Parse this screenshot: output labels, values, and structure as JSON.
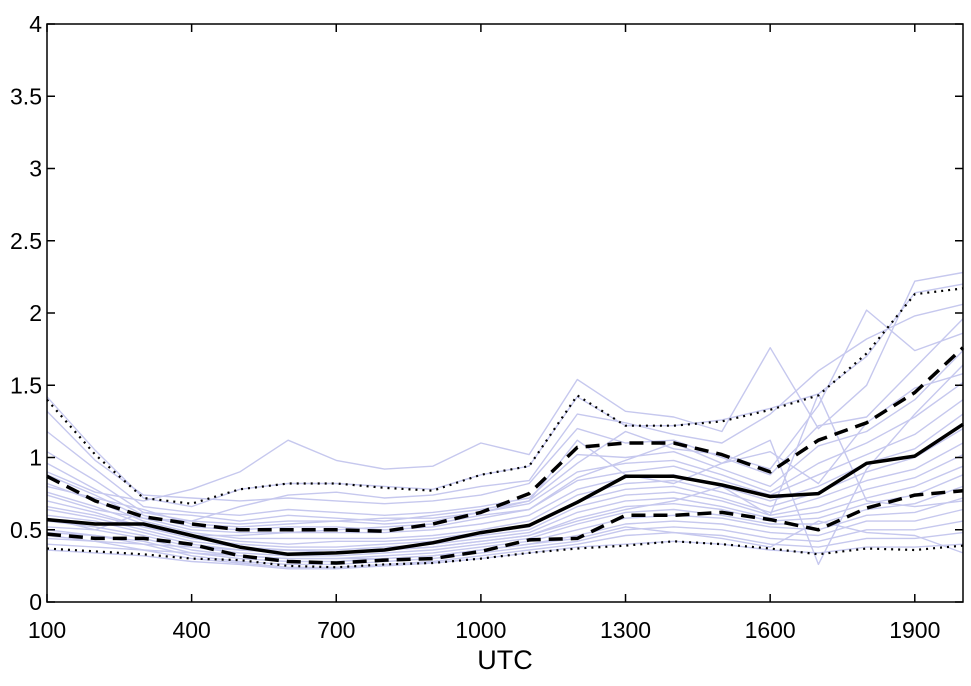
{
  "chart_data": {
    "type": "line",
    "title": "",
    "xlabel": "UTC",
    "ylabel": "",
    "xlim": [
      100,
      2000
    ],
    "ylim": [
      0,
      4
    ],
    "x_ticks": [
      100,
      400,
      700,
      1000,
      1300,
      1600,
      1900
    ],
    "x_tick_labels": [
      "100",
      "400",
      "700",
      "1000",
      "1300",
      "1600",
      "1900"
    ],
    "y_ticks": [
      0,
      0.5,
      1,
      1.5,
      2,
      2.5,
      3,
      3.5,
      4
    ],
    "y_tick_labels": [
      "0",
      "0.5",
      "1",
      "1.5",
      "2",
      "2.5",
      "3",
      "3.5",
      "4"
    ],
    "grid": false,
    "x": [
      100,
      200,
      300,
      400,
      500,
      600,
      700,
      800,
      900,
      1000,
      1100,
      1200,
      1300,
      1400,
      1500,
      1600,
      1700,
      1800,
      1900,
      2000
    ],
    "colors": {
      "ensemble": "#c6c8ee",
      "statistics": "#000000"
    },
    "ensemble": [
      [
        1.42,
        1.05,
        0.72,
        0.66,
        0.78,
        0.82,
        0.82,
        0.8,
        0.78,
        0.88,
        0.94,
        1.42,
        1.22,
        1.22,
        1.26,
        1.34,
        1.44,
        1.7,
        2.14,
        2.2
      ],
      [
        1.32,
        0.98,
        0.74,
        0.72,
        0.7,
        0.72,
        0.7,
        0.68,
        0.7,
        0.74,
        0.82,
        1.2,
        1.1,
        1.12,
        1.0,
        0.88,
        1.22,
        1.28,
        1.62,
        1.96
      ],
      [
        1.18,
        0.92,
        0.66,
        0.62,
        0.6,
        0.64,
        0.62,
        0.6,
        0.62,
        0.66,
        0.72,
        1.02,
        1.0,
        1.04,
        0.92,
        0.8,
        1.08,
        1.18,
        1.4,
        1.74
      ],
      [
        1.04,
        0.84,
        0.62,
        0.56,
        0.54,
        0.56,
        0.56,
        0.54,
        0.56,
        0.62,
        0.68,
        0.9,
        0.96,
        0.98,
        0.88,
        0.76,
        0.96,
        1.1,
        1.28,
        1.52
      ],
      [
        0.96,
        0.78,
        0.6,
        0.52,
        0.5,
        0.52,
        0.52,
        0.5,
        0.52,
        0.58,
        0.64,
        0.84,
        0.9,
        0.94,
        0.84,
        0.74,
        0.88,
        1.02,
        1.16,
        1.4
      ],
      [
        0.88,
        0.74,
        0.58,
        0.5,
        0.48,
        0.48,
        0.48,
        0.48,
        0.5,
        0.54,
        0.6,
        0.78,
        0.86,
        0.88,
        0.8,
        0.7,
        0.8,
        0.96,
        1.06,
        1.3
      ],
      [
        0.82,
        0.7,
        0.56,
        0.48,
        0.44,
        0.44,
        0.44,
        0.44,
        0.46,
        0.5,
        0.56,
        0.74,
        0.82,
        0.84,
        0.76,
        0.66,
        0.76,
        0.9,
        1.0,
        1.2
      ],
      [
        0.76,
        0.66,
        0.54,
        0.46,
        0.42,
        0.4,
        0.42,
        0.42,
        0.44,
        0.48,
        0.52,
        0.7,
        0.78,
        0.8,
        0.72,
        0.62,
        0.72,
        0.84,
        0.92,
        1.1
      ],
      [
        0.7,
        0.62,
        0.52,
        0.44,
        0.4,
        0.38,
        0.38,
        0.4,
        0.42,
        0.46,
        0.5,
        0.66,
        0.74,
        0.76,
        0.7,
        0.6,
        0.66,
        0.78,
        0.86,
        1.02
      ],
      [
        0.64,
        0.58,
        0.5,
        0.42,
        0.38,
        0.36,
        0.36,
        0.38,
        0.4,
        0.44,
        0.48,
        0.62,
        0.7,
        0.72,
        0.66,
        0.58,
        0.62,
        0.72,
        0.8,
        0.94
      ],
      [
        0.6,
        0.56,
        0.48,
        0.4,
        0.36,
        0.34,
        0.34,
        0.36,
        0.38,
        0.42,
        0.46,
        0.58,
        0.66,
        0.68,
        0.64,
        0.56,
        0.58,
        0.68,
        0.74,
        0.88
      ],
      [
        0.56,
        0.52,
        0.46,
        0.38,
        0.34,
        0.32,
        0.32,
        0.34,
        0.36,
        0.4,
        0.44,
        0.54,
        0.62,
        0.64,
        0.6,
        0.54,
        0.54,
        0.64,
        0.68,
        0.8
      ],
      [
        0.52,
        0.5,
        0.44,
        0.36,
        0.32,
        0.3,
        0.3,
        0.32,
        0.34,
        0.38,
        0.42,
        0.5,
        0.58,
        0.6,
        0.58,
        0.52,
        0.5,
        0.6,
        0.62,
        0.72
      ],
      [
        0.48,
        0.46,
        0.42,
        0.34,
        0.3,
        0.28,
        0.28,
        0.3,
        0.32,
        0.36,
        0.4,
        0.46,
        0.54,
        0.56,
        0.54,
        0.48,
        0.46,
        0.56,
        0.56,
        0.64
      ],
      [
        0.44,
        0.42,
        0.4,
        0.32,
        0.28,
        0.26,
        0.26,
        0.28,
        0.3,
        0.34,
        0.38,
        0.42,
        0.5,
        0.52,
        0.5,
        0.44,
        0.42,
        0.5,
        0.5,
        0.56
      ],
      [
        0.4,
        0.38,
        0.36,
        0.3,
        0.27,
        0.24,
        0.24,
        0.26,
        0.28,
        0.32,
        0.36,
        0.4,
        0.46,
        0.48,
        0.46,
        0.4,
        0.38,
        0.44,
        0.44,
        0.48
      ],
      [
        0.36,
        0.34,
        0.32,
        0.28,
        0.26,
        0.23,
        0.23,
        0.25,
        0.27,
        0.3,
        0.34,
        0.38,
        0.4,
        0.42,
        0.4,
        0.36,
        0.34,
        0.38,
        0.38,
        0.4
      ],
      [
        0.9,
        0.76,
        0.7,
        0.78,
        0.9,
        1.12,
        0.98,
        0.92,
        0.94,
        1.1,
        1.02,
        1.54,
        1.32,
        1.28,
        1.18,
        1.76,
        1.2,
        1.5,
        2.22,
        2.28
      ],
      [
        0.74,
        0.64,
        0.58,
        0.56,
        0.66,
        0.74,
        0.76,
        0.72,
        0.74,
        0.8,
        0.84,
        1.3,
        1.24,
        1.16,
        1.1,
        1.3,
        1.6,
        1.82,
        1.98,
        2.06
      ],
      [
        0.58,
        0.5,
        0.62,
        0.6,
        0.56,
        0.6,
        0.58,
        0.56,
        0.6,
        0.64,
        0.7,
        0.96,
        1.18,
        1.06,
        1.02,
        0.92,
        1.36,
        2.02,
        1.74,
        1.86
      ],
      [
        0.66,
        0.6,
        0.52,
        0.46,
        0.46,
        0.48,
        0.5,
        0.52,
        0.54,
        0.6,
        0.64,
        0.86,
        0.98,
        1.1,
        0.96,
        1.12,
        0.26,
        0.92,
        1.3,
        1.64
      ],
      [
        0.5,
        0.46,
        0.4,
        0.38,
        0.36,
        0.36,
        0.34,
        0.36,
        0.38,
        0.42,
        0.46,
        0.56,
        0.64,
        0.7,
        0.8,
        0.6,
        1.44,
        0.7,
        0.66,
        0.7
      ],
      [
        0.8,
        0.72,
        0.64,
        0.54,
        0.52,
        0.54,
        0.56,
        0.58,
        0.58,
        0.62,
        0.7,
        1.12,
        0.88,
        0.82,
        0.96,
        1.04,
        0.82,
        1.24,
        1.48,
        1.58
      ],
      [
        0.46,
        0.42,
        0.36,
        0.34,
        0.32,
        0.3,
        0.3,
        0.3,
        0.32,
        0.36,
        0.4,
        0.44,
        0.52,
        0.48,
        0.44,
        0.38,
        0.56,
        0.48,
        0.46,
        0.34
      ]
    ],
    "series": [
      {
        "name": "",
        "line_style": "dotted",
        "values": [
          1.4,
          1.02,
          0.72,
          0.68,
          0.78,
          0.82,
          0.82,
          0.79,
          0.77,
          0.88,
          0.94,
          1.43,
          1.22,
          1.22,
          1.25,
          1.33,
          1.43,
          1.72,
          2.13,
          2.17
        ]
      },
      {
        "name": "",
        "line_style": "dashed",
        "values": [
          0.87,
          0.7,
          0.59,
          0.54,
          0.5,
          0.5,
          0.5,
          0.49,
          0.54,
          0.62,
          0.75,
          1.07,
          1.1,
          1.1,
          1.02,
          0.9,
          1.12,
          1.24,
          1.45,
          1.76
        ]
      },
      {
        "name": "",
        "line_style": "solid",
        "values": [
          0.57,
          0.54,
          0.54,
          0.46,
          0.38,
          0.33,
          0.34,
          0.36,
          0.41,
          0.48,
          0.53,
          0.69,
          0.87,
          0.87,
          0.81,
          0.73,
          0.75,
          0.96,
          1.01,
          1.23
        ]
      },
      {
        "name": "",
        "line_style": "dashed",
        "values": [
          0.47,
          0.44,
          0.44,
          0.4,
          0.32,
          0.28,
          0.27,
          0.29,
          0.3,
          0.35,
          0.43,
          0.44,
          0.6,
          0.6,
          0.62,
          0.57,
          0.5,
          0.65,
          0.74,
          0.77
        ]
      },
      {
        "name": "",
        "line_style": "dotted",
        "values": [
          0.37,
          0.35,
          0.33,
          0.3,
          0.29,
          0.25,
          0.24,
          0.26,
          0.27,
          0.3,
          0.34,
          0.37,
          0.39,
          0.42,
          0.4,
          0.37,
          0.33,
          0.37,
          0.36,
          0.39
        ]
      }
    ]
  }
}
